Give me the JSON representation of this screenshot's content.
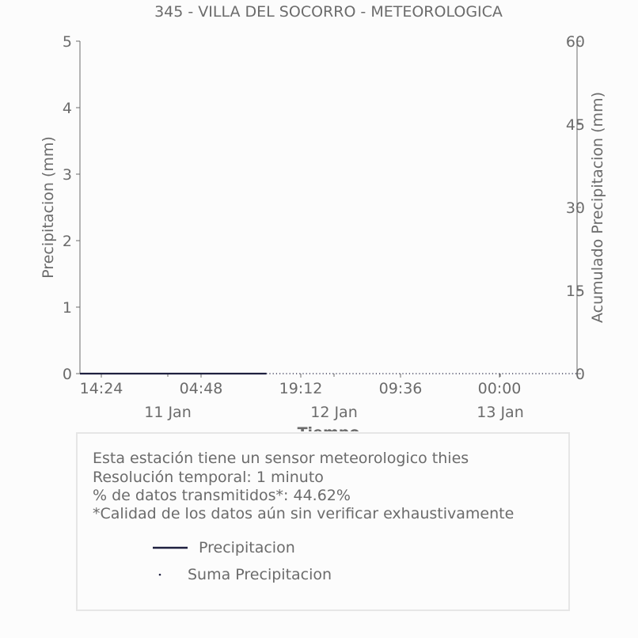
{
  "chart_data": {
    "type": "line",
    "title": "345 - VILLA DEL SOCORRO - METEOROLOGICA",
    "xlabel": "Tiempo",
    "ylabel": "Precipitacion (mm)",
    "y2label": "Acumulado Precipitacion (mm)",
    "x_ticks": [
      "14:24",
      "04:48",
      "19:12",
      "09:36",
      "00:00"
    ],
    "x_date_labels": [
      "11 Jan",
      "12 Jan",
      "13 Jan"
    ],
    "ylim": [
      0,
      5
    ],
    "y_ticks": [
      "0",
      "1",
      "2",
      "3",
      "4",
      "5"
    ],
    "y2lim": [
      0,
      60
    ],
    "y2_ticks": [
      "0",
      "15",
      "30",
      "45",
      "60"
    ],
    "x_range_hours": [
      0,
      60
    ],
    "series": [
      {
        "name": "Precipitacion",
        "axis": "left",
        "color": "#1f2040",
        "style": "solid",
        "x_hours": [
          0,
          6,
          12,
          18,
          22.5
        ],
        "values": [
          0,
          0,
          0,
          0,
          0
        ]
      },
      {
        "name": "Suma Precipitacion",
        "axis": "right",
        "color": "#1f2040",
        "style": "dotted",
        "x_hours": [
          0,
          10,
          20,
          30,
          40,
          50,
          60
        ],
        "values": [
          0,
          0,
          0,
          0,
          0,
          0,
          0
        ]
      }
    ],
    "grid": false,
    "legend_position": "bottom"
  },
  "info": {
    "lines": [
      "Esta estación tiene un sensor meteorologico thies",
      "Resolución temporal: 1 minuto",
      "% de datos transmitidos*: 44.62%",
      "*Calidad de los datos aún sin verificar exhaustivamente"
    ]
  },
  "legend": {
    "items": [
      "Precipitacion",
      "Suma Precipitacion"
    ]
  }
}
